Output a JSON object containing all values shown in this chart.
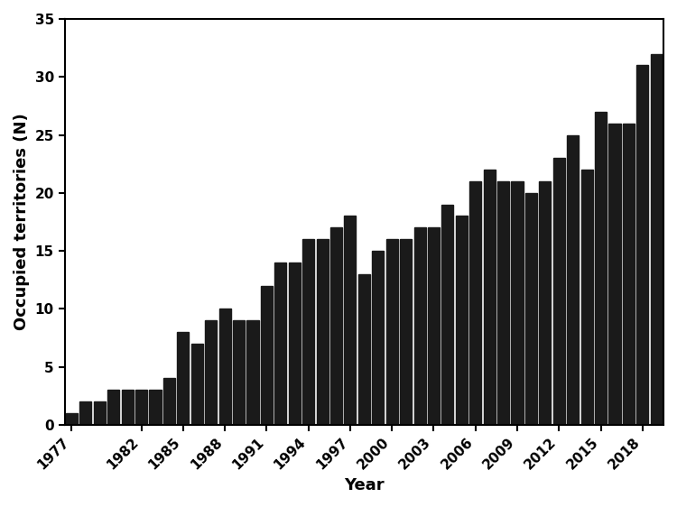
{
  "years": [
    1977,
    1978,
    1979,
    1980,
    1981,
    1982,
    1983,
    1984,
    1985,
    1986,
    1987,
    1988,
    1989,
    1990,
    1991,
    1992,
    1993,
    1994,
    1995,
    1996,
    1997,
    1998,
    1999,
    2000,
    2001,
    2002,
    2003,
    2004,
    2005,
    2006,
    2007,
    2008,
    2009,
    2010,
    2011,
    2012,
    2013,
    2014,
    2015,
    2016,
    2017,
    2018,
    2019
  ],
  "values": [
    1,
    2,
    2,
    3,
    3,
    3,
    3,
    4,
    8,
    7,
    9,
    10,
    9,
    9,
    12,
    14,
    14,
    16,
    16,
    17,
    18,
    13,
    15,
    16,
    16,
    17,
    17,
    19,
    18,
    21,
    22,
    21,
    21,
    20,
    21,
    23,
    25,
    22,
    27,
    26,
    26,
    31,
    32
  ],
  "bar_color": "#1a1a1a",
  "xlabel": "Year",
  "ylabel": "Occupied territories (N)",
  "xlim_left": 1976.5,
  "xlim_right": 2019.5,
  "ylim": [
    0,
    35
  ],
  "yticks": [
    0,
    5,
    10,
    15,
    20,
    25,
    30,
    35
  ],
  "xtick_labels": [
    "1977",
    "1982",
    "1985",
    "1988",
    "1991",
    "1994",
    "1997",
    "2000",
    "2003",
    "2006",
    "2009",
    "2012",
    "2015",
    "2018"
  ],
  "xtick_positions": [
    1977,
    1982,
    1985,
    1988,
    1991,
    1994,
    1997,
    2000,
    2003,
    2006,
    2009,
    2012,
    2015,
    2018
  ],
  "background_color": "#ffffff",
  "label_fontsize": 13,
  "tick_fontsize": 11
}
